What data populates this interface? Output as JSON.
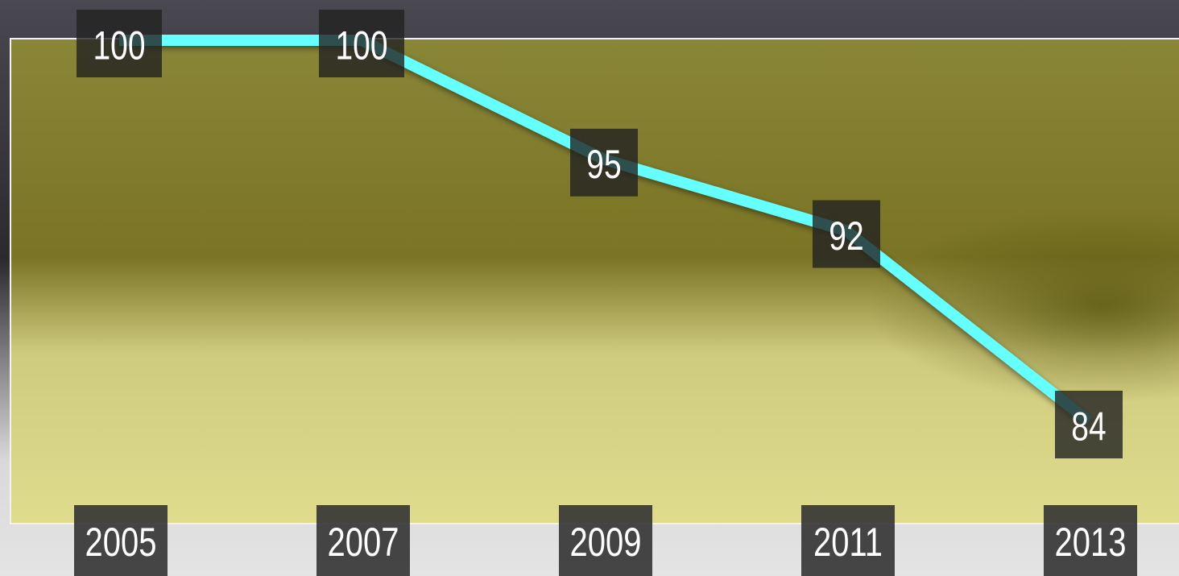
{
  "chart_data": {
    "type": "line",
    "categories": [
      "2005",
      "2007",
      "2009",
      "2011",
      "2013"
    ],
    "values": [
      100,
      100,
      95,
      92,
      84
    ],
    "color": "#66ffff"
  }
}
